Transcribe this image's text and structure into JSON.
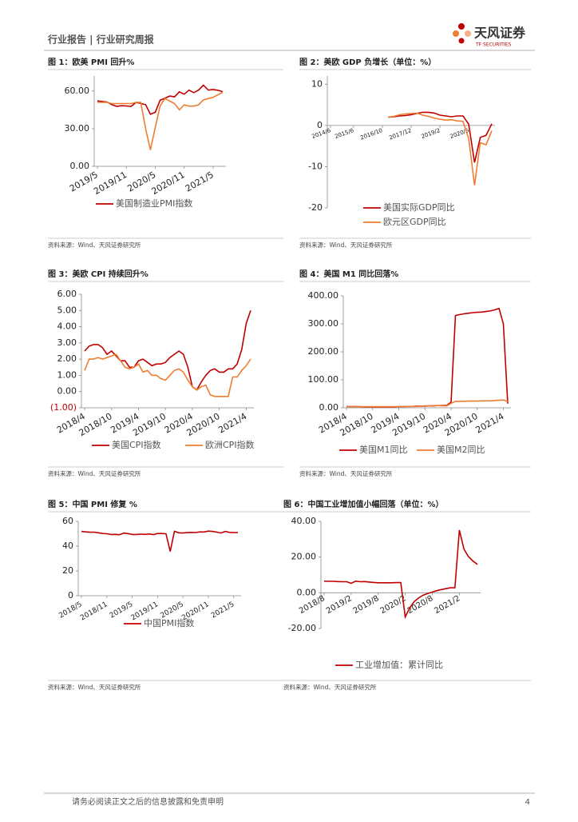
{
  "header": {
    "title": "行业报告 | 行业研究周报",
    "brand": "天风证券",
    "brand_en": "TF SECURITIES"
  },
  "chart_data": [
    {
      "type": "line",
      "title": "图 1：欧美 PMI 回升%",
      "source": "资料来源：Wind、天风证券研究所",
      "categories": [
        "2019/5",
        null,
        null,
        null,
        null,
        null,
        "2019/11",
        null,
        null,
        null,
        null,
        null,
        "2020/5",
        null,
        null,
        null,
        null,
        null,
        "2020/11",
        null,
        null,
        null,
        null,
        null,
        "2021/5",
        null,
        null
      ],
      "series": [
        {
          "name": "美国制造业PMI指数",
          "color": "#c00000",
          "values": [
            52.1,
            51.7,
            51.2,
            49.1,
            47.8,
            48.3,
            48.1,
            47.8,
            50.9,
            50.1,
            49.1,
            41.5,
            43.1,
            52.6,
            54.2,
            56,
            55.4,
            59.3,
            57.5,
            60.7,
            58.7,
            60.8,
            64.7,
            60.7,
            61.2,
            60.6,
            59.5
          ]
        },
        {
          "color": "#ed7d31",
          "values": [
            51,
            51,
            51,
            50,
            50,
            50,
            50,
            50,
            51,
            51,
            30,
            13,
            31,
            48,
            54,
            52,
            50,
            45,
            49,
            48,
            48,
            49,
            53,
            54,
            55,
            57,
            59
          ]
        }
      ],
      "ylim": [
        0,
        72
      ],
      "yticks": [
        {
          "value": 0,
          "label": "0.00"
        },
        {
          "value": 30,
          "label": "30.00"
        },
        {
          "value": 60,
          "label": "60.00"
        }
      ]
    },
    {
      "type": "line",
      "title": "图 2：美欧 GDP 负增长（单位：%）",
      "source": "资料来源：Wind、天风证券研究所",
      "categories": [
        "2014/6",
        null,
        null,
        null,
        "2015/6",
        null,
        null,
        null,
        null,
        "2016/10",
        null,
        null,
        null,
        null,
        "2017/12",
        null,
        null,
        null,
        null,
        "2019/2",
        null,
        null,
        null,
        null,
        "2020/6",
        null,
        null,
        null,
        null
      ],
      "series": [
        {
          "name": "美国实际GDP同比",
          "color": "#c00000",
          "values": [
            null,
            null,
            null,
            null,
            null,
            null,
            null,
            null,
            null,
            null,
            2.0,
            2.1,
            2.3,
            2.4,
            2.6,
            2.9,
            3.2,
            3.2,
            3.0,
            2.5,
            2.3,
            2.1,
            2.3,
            2.3,
            0.3,
            -9.0,
            -2.9,
            -2.4,
            0.4
          ]
        },
        {
          "name": "欧元区GDP同比",
          "color": "#ed7d31",
          "values": [
            null,
            null,
            null,
            null,
            null,
            null,
            null,
            null,
            null,
            null,
            2.0,
            2.2,
            2.6,
            2.8,
            2.9,
            3.0,
            2.5,
            2.2,
            1.8,
            1.5,
            1.3,
            1.4,
            1.1,
            1.0,
            -3.2,
            -14.5,
            -4.2,
            -4.7,
            -1.3
          ]
        }
      ],
      "ylim": [
        -20,
        12
      ],
      "yticks": [
        -20,
        -10,
        0,
        10
      ]
    },
    {
      "type": "line",
      "title": "图 3：美欧 CPI 持续回升%",
      "source": "资料来源：Wind、天风证券研究所",
      "categories": [
        "2018/4",
        null,
        null,
        null,
        null,
        null,
        "2018/10",
        null,
        null,
        null,
        null,
        null,
        "2019/4",
        null,
        null,
        null,
        null,
        null,
        "2019/10",
        null,
        null,
        null,
        null,
        null,
        "2020/4",
        null,
        null,
        null,
        null,
        null,
        "2020/10",
        null,
        null,
        null,
        null,
        null,
        "2021/4",
        null
      ],
      "series": [
        {
          "name": "美国CPI指数",
          "color": "#c00000",
          "values": [
            2.5,
            2.8,
            2.9,
            2.9,
            2.7,
            2.3,
            2.5,
            2.2,
            1.9,
            1.9,
            1.5,
            1.5,
            1.9,
            2.0,
            1.8,
            1.6,
            1.7,
            1.7,
            1.8,
            2.1,
            2.3,
            2.5,
            2.3,
            1.5,
            0.3,
            0.1,
            0.6,
            1.0,
            1.3,
            1.4,
            1.2,
            1.2,
            1.4,
            1.4,
            1.7,
            2.6,
            4.2,
            5.0
          ]
        },
        {
          "name": "欧洲CPI指数",
          "color": "#ed7d31",
          "values": [
            1.3,
            2.0,
            2.0,
            2.1,
            2.0,
            2.1,
            2.2,
            2.3,
            1.9,
            1.5,
            1.4,
            1.5,
            1.7,
            1.2,
            1.3,
            1.0,
            1.0,
            0.8,
            0.7,
            1.0,
            1.3,
            1.4,
            1.2,
            0.7,
            0.3,
            0.1,
            0.3,
            0.4,
            -0.2,
            -0.3,
            -0.3,
            -0.3,
            -0.3,
            0.9,
            0.9,
            1.3,
            1.6,
            2.0
          ]
        }
      ],
      "ylim": [
        -1,
        6
      ],
      "yticks": [
        {
          "value": -1,
          "label": "(1.00)"
        },
        {
          "value": 0,
          "label": "0.00"
        },
        {
          "value": 1,
          "label": "1.00"
        },
        {
          "value": 2,
          "label": "2.00"
        },
        {
          "value": 3,
          "label": "3.00"
        },
        {
          "value": 4,
          "label": "4.00"
        },
        {
          "value": 5,
          "label": "5.00"
        },
        {
          "value": 6,
          "label": "6.00"
        }
      ]
    },
    {
      "type": "line",
      "title": "图 4：美国 M1 同比回落%",
      "source": "资料来源：Wind、天风证券研究所",
      "categories": [
        "2018/4",
        null,
        null,
        null,
        null,
        null,
        "2018/10",
        null,
        null,
        null,
        null,
        null,
        "2019/4",
        null,
        null,
        null,
        null,
        null,
        "2019/10",
        null,
        null,
        null,
        null,
        null,
        "2020/4",
        null,
        null,
        null,
        null,
        null,
        "2020/10",
        null,
        null,
        null,
        null,
        null,
        "2021/4",
        null
      ],
      "series": [
        {
          "name": "美国M1同比",
          "color": "#c00000",
          "values": [
            5,
            4,
            4,
            4,
            3,
            3,
            3,
            3,
            3,
            3,
            3,
            3,
            4,
            4,
            5,
            5,
            6,
            6,
            6,
            7,
            7,
            8,
            8,
            9,
            20,
            330,
            333,
            336,
            338,
            340,
            341,
            342,
            344,
            346,
            350,
            355,
            300,
            15
          ]
        },
        {
          "name": "美国M2同比",
          "color": "#ed7d31",
          "values": [
            4,
            4,
            4,
            4,
            4,
            4,
            4,
            4,
            4,
            4,
            4,
            4,
            4,
            4,
            5,
            5,
            5,
            6,
            7,
            7,
            8,
            8,
            7,
            7,
            16,
            23,
            23,
            23,
            24,
            24,
            24,
            25,
            25,
            25,
            26,
            27,
            28,
            22
          ]
        }
      ],
      "ylim": [
        0,
        400
      ],
      "yticks": [
        {
          "value": 0,
          "label": "0.00"
        },
        {
          "value": 100,
          "label": "100.00"
        },
        {
          "value": 200,
          "label": "200.00"
        },
        {
          "value": 300,
          "label": "300.00"
        },
        {
          "value": 400,
          "label": "400.00"
        }
      ]
    },
    {
      "type": "line",
      "title": "图 5：中国 PMI 修复 %",
      "source": "资料来源：Wind、天风证券研究所",
      "categories": [
        "2018/5",
        null,
        null,
        null,
        null,
        null,
        "2018/11",
        null,
        null,
        null,
        null,
        null,
        "2019/5",
        null,
        null,
        null,
        null,
        null,
        "2019/11",
        null,
        null,
        null,
        null,
        null,
        "2020/5",
        null,
        null,
        null,
        null,
        null,
        "2020/11",
        null,
        null,
        null,
        null,
        null,
        "2021/5",
        null
      ],
      "series": [
        {
          "name": "中国PMI指数",
          "color": "#c00000",
          "values": [
            51.9,
            51.5,
            51.2,
            51.3,
            50.8,
            50.2,
            50,
            49.4,
            49.5,
            49.2,
            50.5,
            50.1,
            49.4,
            49.4,
            49.7,
            49.5,
            49.8,
            49.3,
            50.2,
            50.2,
            50,
            35.7,
            52,
            50.8,
            50.6,
            50.9,
            51.1,
            51,
            51.5,
            51.4,
            52.1,
            51.9,
            51.3,
            50.6,
            51.9,
            51.1,
            51,
            50.9
          ]
        }
      ],
      "ylim": [
        0,
        60
      ],
      "yticks": [
        0,
        20,
        40,
        60
      ]
    },
    {
      "type": "line",
      "title": "图 6：中国工业增加值小幅回落（单位：%）",
      "source": "资料来源：Wind、天风证券研究所",
      "categories": [
        "2018/8",
        null,
        null,
        null,
        null,
        null,
        "2019/2",
        null,
        null,
        null,
        null,
        null,
        "2019/8",
        null,
        null,
        null,
        null,
        null,
        "2020/2",
        null,
        null,
        null,
        null,
        null,
        "2020/8",
        null,
        null,
        null,
        null,
        null,
        "2021/2",
        null,
        null,
        null,
        null
      ],
      "series": [
        {
          "name": "工业增加值：累计同比",
          "color": "#c00000",
          "values": [
            6.5,
            6.4,
            6.4,
            6.3,
            6.2,
            6.2,
            5.3,
            6.5,
            6.2,
            6.3,
            6.0,
            5.8,
            5.6,
            5.6,
            5.6,
            5.6,
            5.7,
            5.7,
            -13.5,
            -8.4,
            -4.9,
            -2.8,
            -1.3,
            -0.4,
            0.4,
            1.2,
            1.8,
            2.3,
            2.8,
            2.8,
            35.1,
            24.5,
            20.3,
            17.8,
            15.9
          ]
        }
      ],
      "ylim": [
        -20,
        40
      ],
      "yticks": [
        {
          "value": -20,
          "label": "-20.00"
        },
        {
          "value": 0,
          "label": "0.00"
        },
        {
          "value": 20,
          "label": "20.00"
        },
        {
          "value": 40,
          "label": "40.00"
        }
      ]
    }
  ],
  "footer": {
    "disclaimer": "请务必阅读正文之后的信息披露和免责申明",
    "page": 4
  }
}
